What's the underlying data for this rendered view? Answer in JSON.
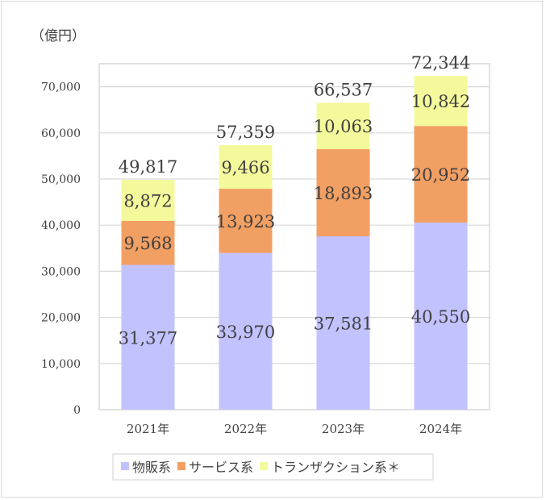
{
  "chart_data": {
    "type": "bar",
    "stacked": true,
    "title": "",
    "ylabel": "（億円）",
    "xlabel": "",
    "categories": [
      "2021年",
      "2022年",
      "2023年",
      "2024年"
    ],
    "series": [
      {
        "name": "物販系",
        "color": "#c2c2ff",
        "values": [
          31377,
          33970,
          37581,
          40550
        ],
        "labels": [
          "31,377",
          "33,970",
          "37,581",
          "40,550"
        ]
      },
      {
        "name": "サービス系",
        "color": "#f29f63",
        "values": [
          9568,
          13923,
          18893,
          20952
        ],
        "labels": [
          "9,568",
          "13,923",
          "18,893",
          "20,952"
        ]
      },
      {
        "name": "トランザクション系＊",
        "color": "#f4f99c",
        "values": [
          8872,
          9466,
          10063,
          10842
        ],
        "labels": [
          "8,872",
          "9,466",
          "10,063",
          "10,842"
        ]
      }
    ],
    "totals": [
      49817,
      57359,
      66537,
      72344
    ],
    "total_labels": [
      "49,817",
      "57,359",
      "66,537",
      "72,344"
    ],
    "ylim": [
      0,
      75000
    ],
    "yticks": [
      0,
      10000,
      20000,
      30000,
      40000,
      50000,
      60000,
      70000
    ],
    "ytick_labels": [
      "0",
      "10,000",
      "20,000",
      "30,000",
      "40,000",
      "50,000",
      "60,000",
      "70,000"
    ],
    "grid": true,
    "legend_position": "bottom"
  }
}
